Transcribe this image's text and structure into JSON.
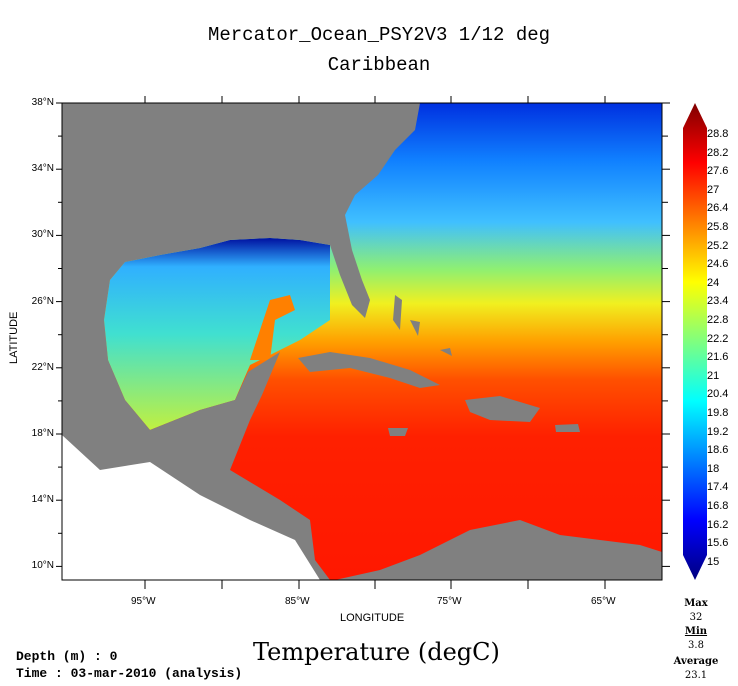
{
  "title": "Mercator_Ocean_PSY2V3 1/12 deg",
  "subtitle": "Caribbean",
  "variable": "Temperature (degC)",
  "depth": "Depth (m) : 0",
  "time": "Time : 03-mar-2010 (analysis)",
  "axes": {
    "xlabel": "LONGITUDE",
    "ylabel": "LATITUDE",
    "xticks": [
      "95°W",
      "85°W",
      "75°W",
      "65°W"
    ],
    "yticks": [
      "38°N",
      "34°N",
      "30°N",
      "26°N",
      "22°N",
      "18°N",
      "14°N",
      "10°N"
    ]
  },
  "colorbar": {
    "labels": [
      "28.8",
      "28.2",
      "27.6",
      "27",
      "26.4",
      "25.8",
      "25.2",
      "24.6",
      "24",
      "23.4",
      "22.8",
      "22.2",
      "21.6",
      "21",
      "20.4",
      "19.8",
      "19.2",
      "18.6",
      "18",
      "17.4",
      "16.8",
      "16.2",
      "15.6",
      "15"
    ],
    "colors": [
      "#00007f",
      "#0000ff",
      "#007fff",
      "#00ffff",
      "#7fff7f",
      "#ffff00",
      "#ff7f00",
      "#ff0000",
      "#7f0000"
    ]
  },
  "stats": {
    "max_label": "Max",
    "max": "32",
    "min_label": "Min",
    "min": "3.8",
    "avg_label": "Average",
    "avg": "23.1"
  }
}
